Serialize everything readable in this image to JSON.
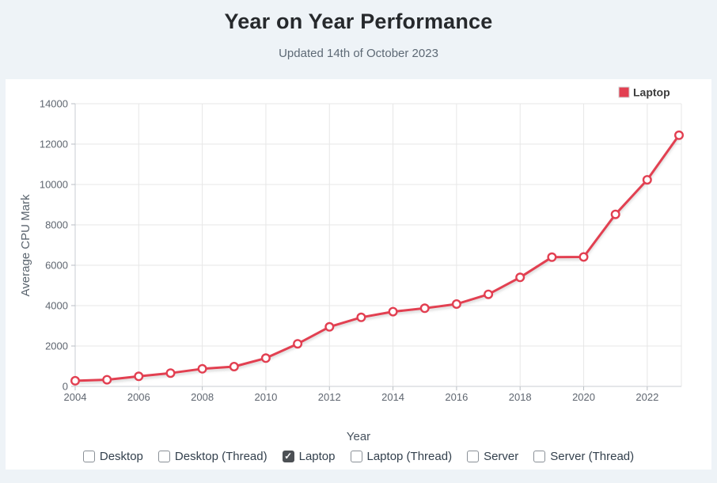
{
  "page": {
    "title": "Year on Year Performance",
    "subtitle": "Updated 14th of October 2023"
  },
  "chart_data": {
    "type": "line",
    "title": "",
    "xlabel": "Year",
    "ylabel": "Average CPU Mark",
    "x": [
      2004,
      2005,
      2006,
      2007,
      2008,
      2009,
      2010,
      2011,
      2012,
      2013,
      2014,
      2015,
      2016,
      2017,
      2018,
      2019,
      2020,
      2021,
      2022,
      2023
    ],
    "series": [
      {
        "name": "Laptop",
        "color": "#e23f51",
        "marker": "circle",
        "values": [
          280,
          330,
          500,
          660,
          870,
          980,
          1400,
          2110,
          2950,
          3420,
          3700,
          3870,
          4080,
          4560,
          5400,
          6400,
          6410,
          8520,
          10230,
          12440
        ]
      }
    ],
    "ylim": [
      0,
      14000
    ],
    "ytick_step": 2000,
    "xticks": [
      2004,
      2006,
      2008,
      2010,
      2012,
      2014,
      2016,
      2018,
      2020,
      2022
    ],
    "grid": true,
    "legend_position": "top-right"
  },
  "filters": [
    {
      "label": "Desktop",
      "checked": false
    },
    {
      "label": "Desktop (Thread)",
      "checked": false
    },
    {
      "label": "Laptop",
      "checked": true
    },
    {
      "label": "Laptop (Thread)",
      "checked": false
    },
    {
      "label": "Server",
      "checked": false
    },
    {
      "label": "Server (Thread)",
      "checked": false
    }
  ],
  "colors": {
    "accent": "#e23f51",
    "page_bg": "#eef3f7",
    "card_bg": "#ffffff",
    "grid": "#e7e7e7",
    "axis_line": "#c9ced3",
    "tick_text": "#5f6670",
    "title_text": "#26292c",
    "subtitle_text": "#5d6975",
    "legend_text": "#3c3c3c"
  }
}
